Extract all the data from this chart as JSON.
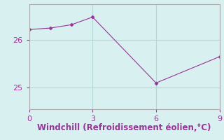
{
  "x": [
    0,
    1,
    2,
    3,
    6,
    9
  ],
  "y": [
    26.22,
    26.25,
    26.32,
    26.48,
    25.1,
    25.65
  ],
  "line_color": "#993399",
  "marker": "D",
  "marker_size": 2.5,
  "background_color": "#d9f0f0",
  "grid_color": "#b0d8d8",
  "xlabel": "Windchill (Refroidissement éolien,°C)",
  "xlabel_color": "#993399",
  "xlabel_fontsize": 8.5,
  "tick_color": "#993399",
  "ytick_color": "#993399",
  "tick_fontsize": 8,
  "spine_color": "#aaaaaa",
  "xlim": [
    0,
    9
  ],
  "ylim": [
    24.55,
    26.75
  ],
  "xticks": [
    0,
    3,
    6,
    9
  ],
  "yticks": [
    25,
    26
  ]
}
